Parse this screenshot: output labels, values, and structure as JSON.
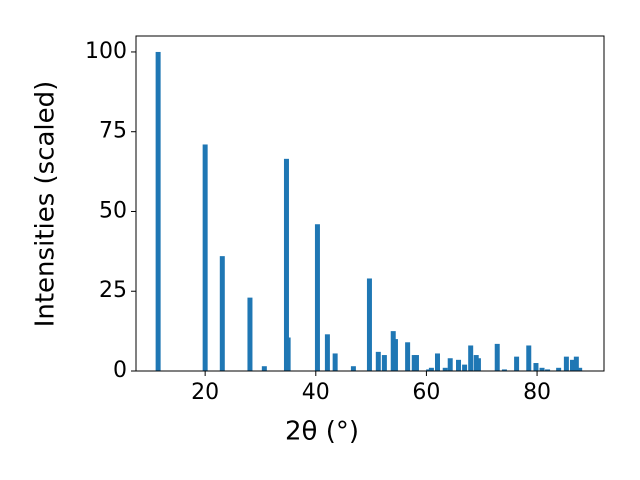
{
  "chart_data": {
    "type": "bar",
    "x_label": "2θ (°)",
    "y_label": "Intensities (scaled)",
    "color": "#1f77b4",
    "x": [
      11.5,
      20.0,
      23.1,
      28.1,
      30.7,
      34.7,
      35.0,
      40.3,
      42.1,
      43.5,
      46.8,
      49.7,
      51.3,
      52.4,
      54.0,
      54.4,
      56.6,
      57.8,
      58.2,
      60.4,
      60.9,
      62.0,
      63.4,
      64.3,
      65.8,
      66.9,
      68.0,
      69.0,
      69.4,
      72.8,
      74.1,
      76.3,
      78.5,
      79.8,
      80.9,
      81.9,
      83.9,
      85.3,
      86.4,
      87.1,
      87.7
    ],
    "values": [
      100,
      71,
      36,
      23,
      1.5,
      66.5,
      10.5,
      46,
      11.5,
      5.5,
      1.5,
      29,
      6,
      5,
      12.5,
      10,
      9,
      5,
      5,
      0.5,
      1,
      5.5,
      1,
      4,
      3.5,
      2,
      8,
      5,
      4,
      8.5,
      0.5,
      4.5,
      8,
      2.5,
      1,
      0.5,
      1,
      4.5,
      3.5,
      4.5,
      1
    ],
    "xlim": [
      7.5,
      92.1
    ],
    "ylim": [
      0,
      105
    ],
    "xticks": [
      20,
      40,
      60,
      80
    ],
    "yticks": [
      0,
      25,
      50,
      75,
      100
    ],
    "grid": false
  }
}
